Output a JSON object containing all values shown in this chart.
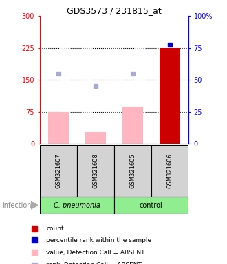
{
  "title": "GDS3573 / 231815_at",
  "samples": [
    "GSM321607",
    "GSM321608",
    "GSM321605",
    "GSM321606"
  ],
  "bar_values": [
    75,
    28,
    88,
    225
  ],
  "bar_colors": [
    "#FFB6C1",
    "#FFB6C1",
    "#FFB6C1",
    "#CC0000"
  ],
  "dot_values": [
    165,
    135,
    165,
    232
  ],
  "dot_colors": [
    "#AAAACC",
    "#AAAACC",
    "#AAAACC",
    "#0000BB"
  ],
  "ylim_left": [
    0,
    300
  ],
  "ylim_right": [
    0,
    100
  ],
  "yticks_left": [
    0,
    75,
    150,
    225,
    300
  ],
  "yticks_right": [
    0,
    25,
    50,
    75,
    100
  ],
  "ytick_labels_left": [
    "0",
    "75",
    "150",
    "225",
    "300"
  ],
  "ytick_labels_right": [
    "0",
    "25",
    "50",
    "75",
    "100%"
  ],
  "dotted_lines": [
    75,
    150,
    225
  ],
  "group_label": "infection",
  "group_names": [
    "C. pneumonia",
    "control"
  ],
  "group_color": "#90EE90",
  "sample_box_color": "#D3D3D3",
  "legend_items": [
    {
      "label": "count",
      "color": "#CC0000"
    },
    {
      "label": "percentile rank within the sample",
      "color": "#0000BB"
    },
    {
      "label": "value, Detection Call = ABSENT",
      "color": "#FFB6C1"
    },
    {
      "label": "rank, Detection Call = ABSENT",
      "color": "#AAAACC"
    }
  ],
  "fig_width": 3.3,
  "fig_height": 3.84,
  "dpi": 100
}
